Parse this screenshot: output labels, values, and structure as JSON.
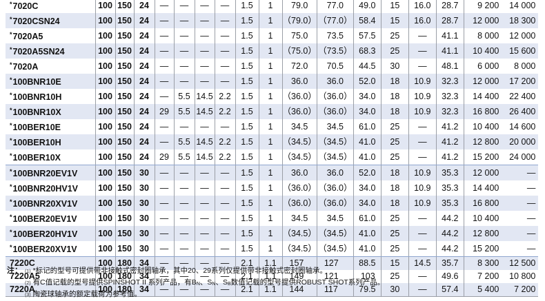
{
  "table": {
    "rows": [
      {
        "name": "7020C",
        "star": true,
        "cells": [
          "100",
          "150",
          "24",
          "—",
          "—",
          "—",
          "—",
          "1.5",
          "1",
          "79.0",
          "77.0",
          "49.0",
          "15",
          "16.0",
          "28.7",
          "9 200",
          "14 000"
        ]
      },
      {
        "name": "7020CSN24",
        "star": true,
        "cells": [
          "100",
          "150",
          "24",
          "—",
          "—",
          "—",
          "—",
          "1.5",
          "1",
          "（79.0）",
          "（77.0）",
          "58.4",
          "15",
          "16.0",
          "28.7",
          "12 000",
          "18 300"
        ]
      },
      {
        "name": "7020A5",
        "star": true,
        "cells": [
          "100",
          "150",
          "24",
          "—",
          "—",
          "—",
          "—",
          "1.5",
          "1",
          "75.0",
          "73.5",
          "57.5",
          "25",
          "—",
          "41.1",
          "8 000",
          "12 000"
        ]
      },
      {
        "name": "7020A5SN24",
        "star": true,
        "cells": [
          "100",
          "150",
          "24",
          "—",
          "—",
          "—",
          "—",
          "1.5",
          "1",
          "（75.0）",
          "（73.5）",
          "68.3",
          "25",
          "—",
          "41.1",
          "10 400",
          "15 600"
        ]
      },
      {
        "name": "7020A",
        "star": true,
        "cells": [
          "100",
          "150",
          "24",
          "—",
          "—",
          "—",
          "—",
          "1.5",
          "1",
          "72.0",
          "70.5",
          "44.5",
          "30",
          "—",
          "48.1",
          "6 000",
          "8 000"
        ]
      },
      {
        "name": "100BNR10E",
        "star": true,
        "cells": [
          "100",
          "150",
          "24",
          "—",
          "—",
          "—",
          "—",
          "1.5",
          "1",
          "36.0",
          "36.0",
          "52.0",
          "18",
          "10.9",
          "32.3",
          "12 000",
          "17 200"
        ]
      },
      {
        "name": "100BNR10H",
        "star": true,
        "cells": [
          "100",
          "150",
          "24",
          "—",
          "5.5",
          "14.5",
          "2.2",
          "1.5",
          "1",
          "（36.0）",
          "（36.0）",
          "34.0",
          "18",
          "10.9",
          "32.3",
          "14 400",
          "22 400"
        ]
      },
      {
        "name": "100BNR10X",
        "star": true,
        "cells": [
          "100",
          "150",
          "24",
          "29",
          "5.5",
          "14.5",
          "2.2",
          "1.5",
          "1",
          "（36.0）",
          "（36.0）",
          "34.0",
          "18",
          "10.9",
          "32.3",
          "16 800",
          "26 400"
        ]
      },
      {
        "name": "100BER10E",
        "star": true,
        "cells": [
          "100",
          "150",
          "24",
          "—",
          "—",
          "—",
          "—",
          "1.5",
          "1",
          "34.5",
          "34.5",
          "61.0",
          "25",
          "—",
          "41.2",
          "10 400",
          "14 600"
        ]
      },
      {
        "name": "100BER10H",
        "star": true,
        "cells": [
          "100",
          "150",
          "24",
          "—",
          "5.5",
          "14.5",
          "2.2",
          "1.5",
          "1",
          "（34.5）",
          "（34.5）",
          "41.0",
          "25",
          "—",
          "41.2",
          "12 800",
          "20 000"
        ]
      },
      {
        "name": "100BER10X",
        "star": true,
        "cells": [
          "100",
          "150",
          "24",
          "29",
          "5.5",
          "14.5",
          "2.2",
          "1.5",
          "1",
          "（34.5）",
          "（34.5）",
          "41.0",
          "25",
          "—",
          "41.2",
          "15 200",
          "24 000"
        ]
      },
      {
        "name": "100BNR20EV1V",
        "star": true,
        "cells": [
          "100",
          "150",
          "30",
          "—",
          "—",
          "—",
          "—",
          "1.5",
          "1",
          "36.0",
          "36.0",
          "52.0",
          "18",
          "10.9",
          "35.3",
          "12 000",
          "—"
        ]
      },
      {
        "name": "100BNR20HV1V",
        "star": true,
        "cells": [
          "100",
          "150",
          "30",
          "—",
          "—",
          "—",
          "—",
          "1.5",
          "1",
          "（36.0）",
          "（36.0）",
          "34.0",
          "18",
          "10.9",
          "35.3",
          "14 400",
          "—"
        ]
      },
      {
        "name": "100BNR20XV1V",
        "star": true,
        "cells": [
          "100",
          "150",
          "30",
          "—",
          "—",
          "—",
          "—",
          "1.5",
          "1",
          "（36.0）",
          "（36.0）",
          "34.0",
          "18",
          "10.9",
          "35.3",
          "16 800",
          "—"
        ]
      },
      {
        "name": "100BER20EV1V",
        "star": true,
        "cells": [
          "100",
          "150",
          "30",
          "—",
          "—",
          "—",
          "—",
          "1.5",
          "1",
          "34.5",
          "34.5",
          "61.0",
          "25",
          "—",
          "44.2",
          "10 400",
          "—"
        ]
      },
      {
        "name": "100BER20HV1V",
        "star": true,
        "cells": [
          "100",
          "150",
          "30",
          "—",
          "—",
          "—",
          "—",
          "1.5",
          "1",
          "（34.5）",
          "（34.5）",
          "41.0",
          "25",
          "—",
          "44.2",
          "12 800",
          "—"
        ]
      },
      {
        "name": "100BER20XV1V",
        "star": true,
        "cells": [
          "100",
          "150",
          "30",
          "—",
          "—",
          "—",
          "—",
          "1.5",
          "1",
          "（34.5）",
          "（34.5）",
          "41.0",
          "25",
          "—",
          "44.2",
          "15 200",
          "—"
        ]
      },
      {
        "name": "7220C",
        "star": false,
        "cells": [
          "100",
          "180",
          "34",
          "—",
          "—",
          "—",
          "—",
          "2.1",
          "1.1",
          "157",
          "127",
          "88.5",
          "15",
          "14.5",
          "35.7",
          "8 300",
          "12 500"
        ]
      },
      {
        "name": "7220A5",
        "star": false,
        "cells": [
          "100",
          "180",
          "34",
          "—",
          "—",
          "—",
          "—",
          "2.1",
          "1.1",
          "149",
          "121",
          "103",
          "25",
          "—",
          "49.6",
          "7 200",
          "10 800"
        ]
      },
      {
        "name": "7220A",
        "star": false,
        "cells": [
          "100",
          "180",
          "34",
          "—",
          "—",
          "—",
          "—",
          "2.1",
          "1.1",
          "144",
          "117",
          "79.5",
          "30",
          "—",
          "57.4",
          "5 400",
          "7 200"
        ]
      }
    ],
    "star_mark": "*",
    "separator_after": [
      10,
      16
    ],
    "colors": {
      "stripe": "#e2e7f3",
      "group_line": "#8ea5cf",
      "grid": "#9a9ea6"
    }
  },
  "notes": {
    "label": "注：",
    "items": [
      {
        "num": "(1)",
        "text": "*标记的型号可提供带非接触式密封圈轴承，其中20、29系列仅提供带非接触式密封圈轴承。"
      },
      {
        "num": "(2)",
        "pre": "有C值记载的型号提供SPINSHOT II 系列产品，有B",
        "sub1": "N",
        "mid1": "、S",
        "sub2": "N",
        "mid2": "、S",
        "sub3": "B",
        "post": "数值记载的型号提供ROBUST SHOT系列产品。"
      },
      {
        "num": "(3)",
        "text": "陶瓷球轴承的额定载荷为参考值。"
      }
    ]
  }
}
